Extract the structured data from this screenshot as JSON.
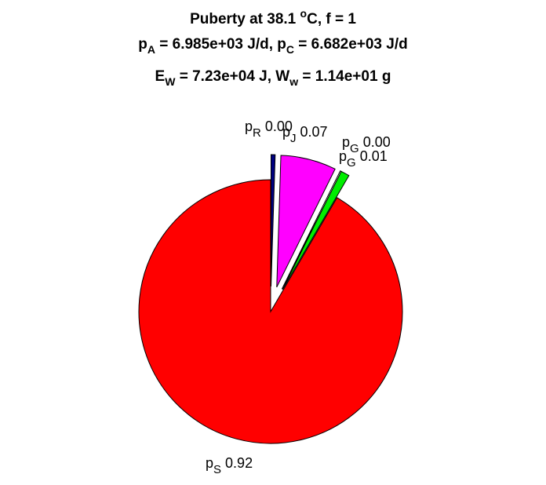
{
  "chart_data": {
    "type": "pie",
    "title_lines": [
      {
        "segments": [
          {
            "text": "Puberty at 38.1 "
          },
          {
            "text": "o",
            "shift": "sup"
          },
          {
            "text": "C, f = 1"
          }
        ]
      },
      {
        "segments": [
          {
            "text": "p"
          },
          {
            "text": "A",
            "shift": "sub"
          },
          {
            "text": " = 6.985e+03 J/d,  p"
          },
          {
            "text": "C",
            "shift": "sub"
          },
          {
            "text": " = 6.682e+03 J/d"
          }
        ]
      },
      {
        "segments": [
          {
            "text": "E"
          },
          {
            "text": "W",
            "shift": "sub"
          },
          {
            "text": " = 7.23e+04 J, W"
          },
          {
            "text": "w",
            "shift": "sub"
          },
          {
            "text": " = 1.14e+01 g"
          }
        ]
      }
    ],
    "slices": [
      {
        "symbol": "p",
        "sub": "R",
        "label": "0.00",
        "value": 0.005,
        "color": "#000080",
        "exploded": true
      },
      {
        "symbol": "p",
        "sub": "J",
        "label": "0.07",
        "value": 0.068,
        "color": "#ff00ff",
        "exploded": true
      },
      {
        "symbol": "p",
        "sub": "G",
        "label": "0.00",
        "value": 0.0005,
        "color": "#ffffff",
        "exploded": true
      },
      {
        "symbol": "p",
        "sub": "G",
        "label": "0.01",
        "value": 0.0105,
        "color": "#00ee00",
        "exploded": true
      },
      {
        "symbol": "p",
        "sub": "S",
        "label": "0.92",
        "value": 0.916,
        "color": "#ff0000",
        "exploded": false
      }
    ],
    "start_angle_deg": 0,
    "direction": "clockwise",
    "legend": "none",
    "grid": false
  }
}
